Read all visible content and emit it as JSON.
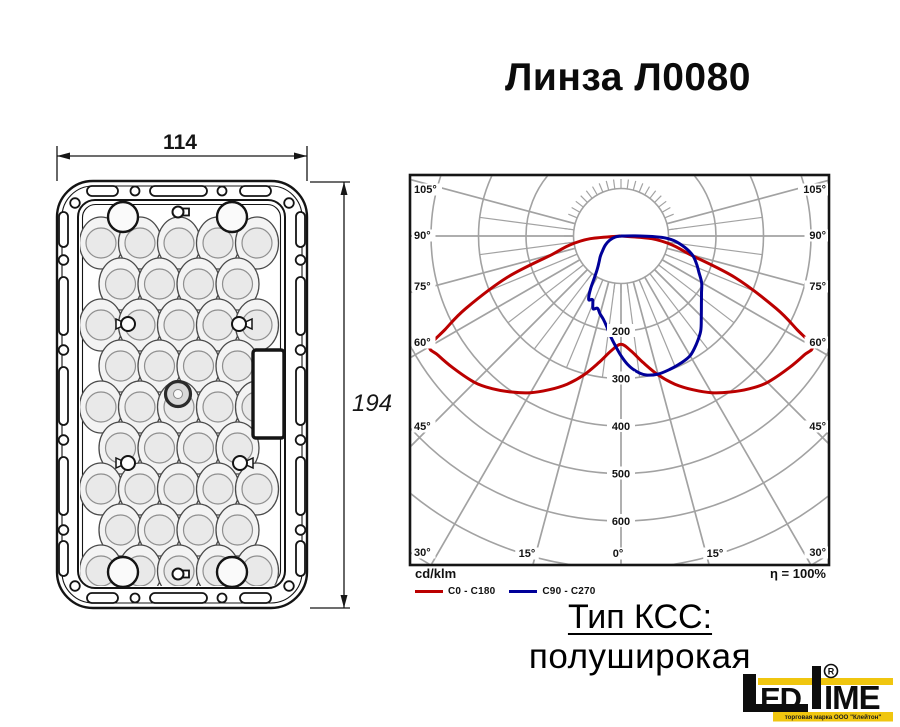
{
  "title": "Линза Л0080",
  "drawing": {
    "width_dim": "114",
    "height_dim": "194"
  },
  "chart": {
    "unit_label": "cd/klm",
    "efficiency_label": "η = 100%",
    "legend": [
      {
        "label": "C0 - C180",
        "color": "#bb0000"
      },
      {
        "label": "C90 - C270",
        "color": "#000099"
      }
    ],
    "radial_tick_labels": [
      "200",
      "300",
      "400",
      "500",
      "600"
    ],
    "angle_labels_left": [
      "105°",
      "90°",
      "75°",
      "60°",
      "45°",
      "30°"
    ],
    "angle_labels_right": [
      "105°",
      "90°",
      "75°",
      "60°",
      "45°",
      "30°"
    ],
    "angle_labels_bottom": [
      "15°",
      "0°",
      "15°"
    ]
  },
  "chart_data": {
    "type": "polar",
    "units": "cd/klm",
    "efficiency": "η = 100%",
    "angle_ticks_deg": [
      -105,
      -90,
      -75,
      -60,
      -45,
      -30,
      -15,
      0,
      15,
      30,
      45,
      60,
      75,
      90,
      105
    ],
    "radial_ticks": [
      100,
      200,
      300,
      400,
      500,
      600
    ],
    "grid": true,
    "series": [
      {
        "name": "C0 - C180",
        "color": "#bb0000",
        "points": [
          [
            -90,
            0
          ],
          [
            -85,
            65
          ],
          [
            -80,
            110
          ],
          [
            -75,
            150
          ],
          [
            -70,
            255
          ],
          [
            -65,
            360
          ],
          [
            -62,
            420
          ],
          [
            -60,
            465
          ],
          [
            -57,
            460
          ],
          [
            -52,
            450
          ],
          [
            -45,
            436
          ],
          [
            -40,
            420
          ],
          [
            -35,
            401
          ],
          [
            -30,
            381
          ],
          [
            -25,
            357
          ],
          [
            -20,
            332
          ],
          [
            -15,
            303
          ],
          [
            -10,
            271
          ],
          [
            -5,
            243
          ],
          [
            0,
            228
          ],
          [
            5,
            243
          ],
          [
            10,
            271
          ],
          [
            15,
            303
          ],
          [
            20,
            332
          ],
          [
            25,
            357
          ],
          [
            30,
            381
          ],
          [
            35,
            401
          ],
          [
            40,
            420
          ],
          [
            45,
            436
          ],
          [
            52,
            450
          ],
          [
            57,
            460
          ],
          [
            60,
            465
          ],
          [
            62,
            420
          ],
          [
            65,
            360
          ],
          [
            70,
            255
          ],
          [
            75,
            150
          ],
          [
            80,
            110
          ],
          [
            85,
            65
          ],
          [
            90,
            0
          ]
        ]
      },
      {
        "name": "C90 - C270",
        "color": "#000099",
        "points": [
          [
            -90,
            0
          ],
          [
            -80,
            12
          ],
          [
            -70,
            25
          ],
          [
            -60,
            38
          ],
          [
            -50,
            52
          ],
          [
            -45,
            62
          ],
          [
            -40,
            72
          ],
          [
            -36,
            84
          ],
          [
            -33,
            100
          ],
          [
            -30,
            128
          ],
          [
            -27,
            150
          ],
          [
            -24,
            147
          ],
          [
            -21,
            164
          ],
          [
            -18,
            160
          ],
          [
            -15,
            170
          ],
          [
            -12,
            179
          ],
          [
            -9,
            193
          ],
          [
            -6,
            212
          ],
          [
            -3,
            231
          ],
          [
            0,
            252
          ],
          [
            3,
            271
          ],
          [
            6,
            285
          ],
          [
            10,
            297
          ],
          [
            15,
            301
          ],
          [
            20,
            299
          ],
          [
            25,
            296
          ],
          [
            30,
            291
          ],
          [
            35,
            277
          ],
          [
            40,
            261
          ],
          [
            45,
            239
          ],
          [
            50,
            221
          ],
          [
            55,
            207
          ],
          [
            60,
            196
          ],
          [
            65,
            181
          ],
          [
            70,
            169
          ],
          [
            75,
            156
          ],
          [
            80,
            136
          ],
          [
            85,
            112
          ],
          [
            88,
            86
          ],
          [
            90,
            40
          ],
          [
            91,
            0
          ]
        ]
      }
    ]
  },
  "kcc": {
    "heading": "Тип КСС: ",
    "value": "полуширокая"
  },
  "logo": {
    "led": "ED",
    "ime": "IME",
    "registered": "R",
    "subtitle": "торговая марка ООО \"Клейтон\""
  }
}
